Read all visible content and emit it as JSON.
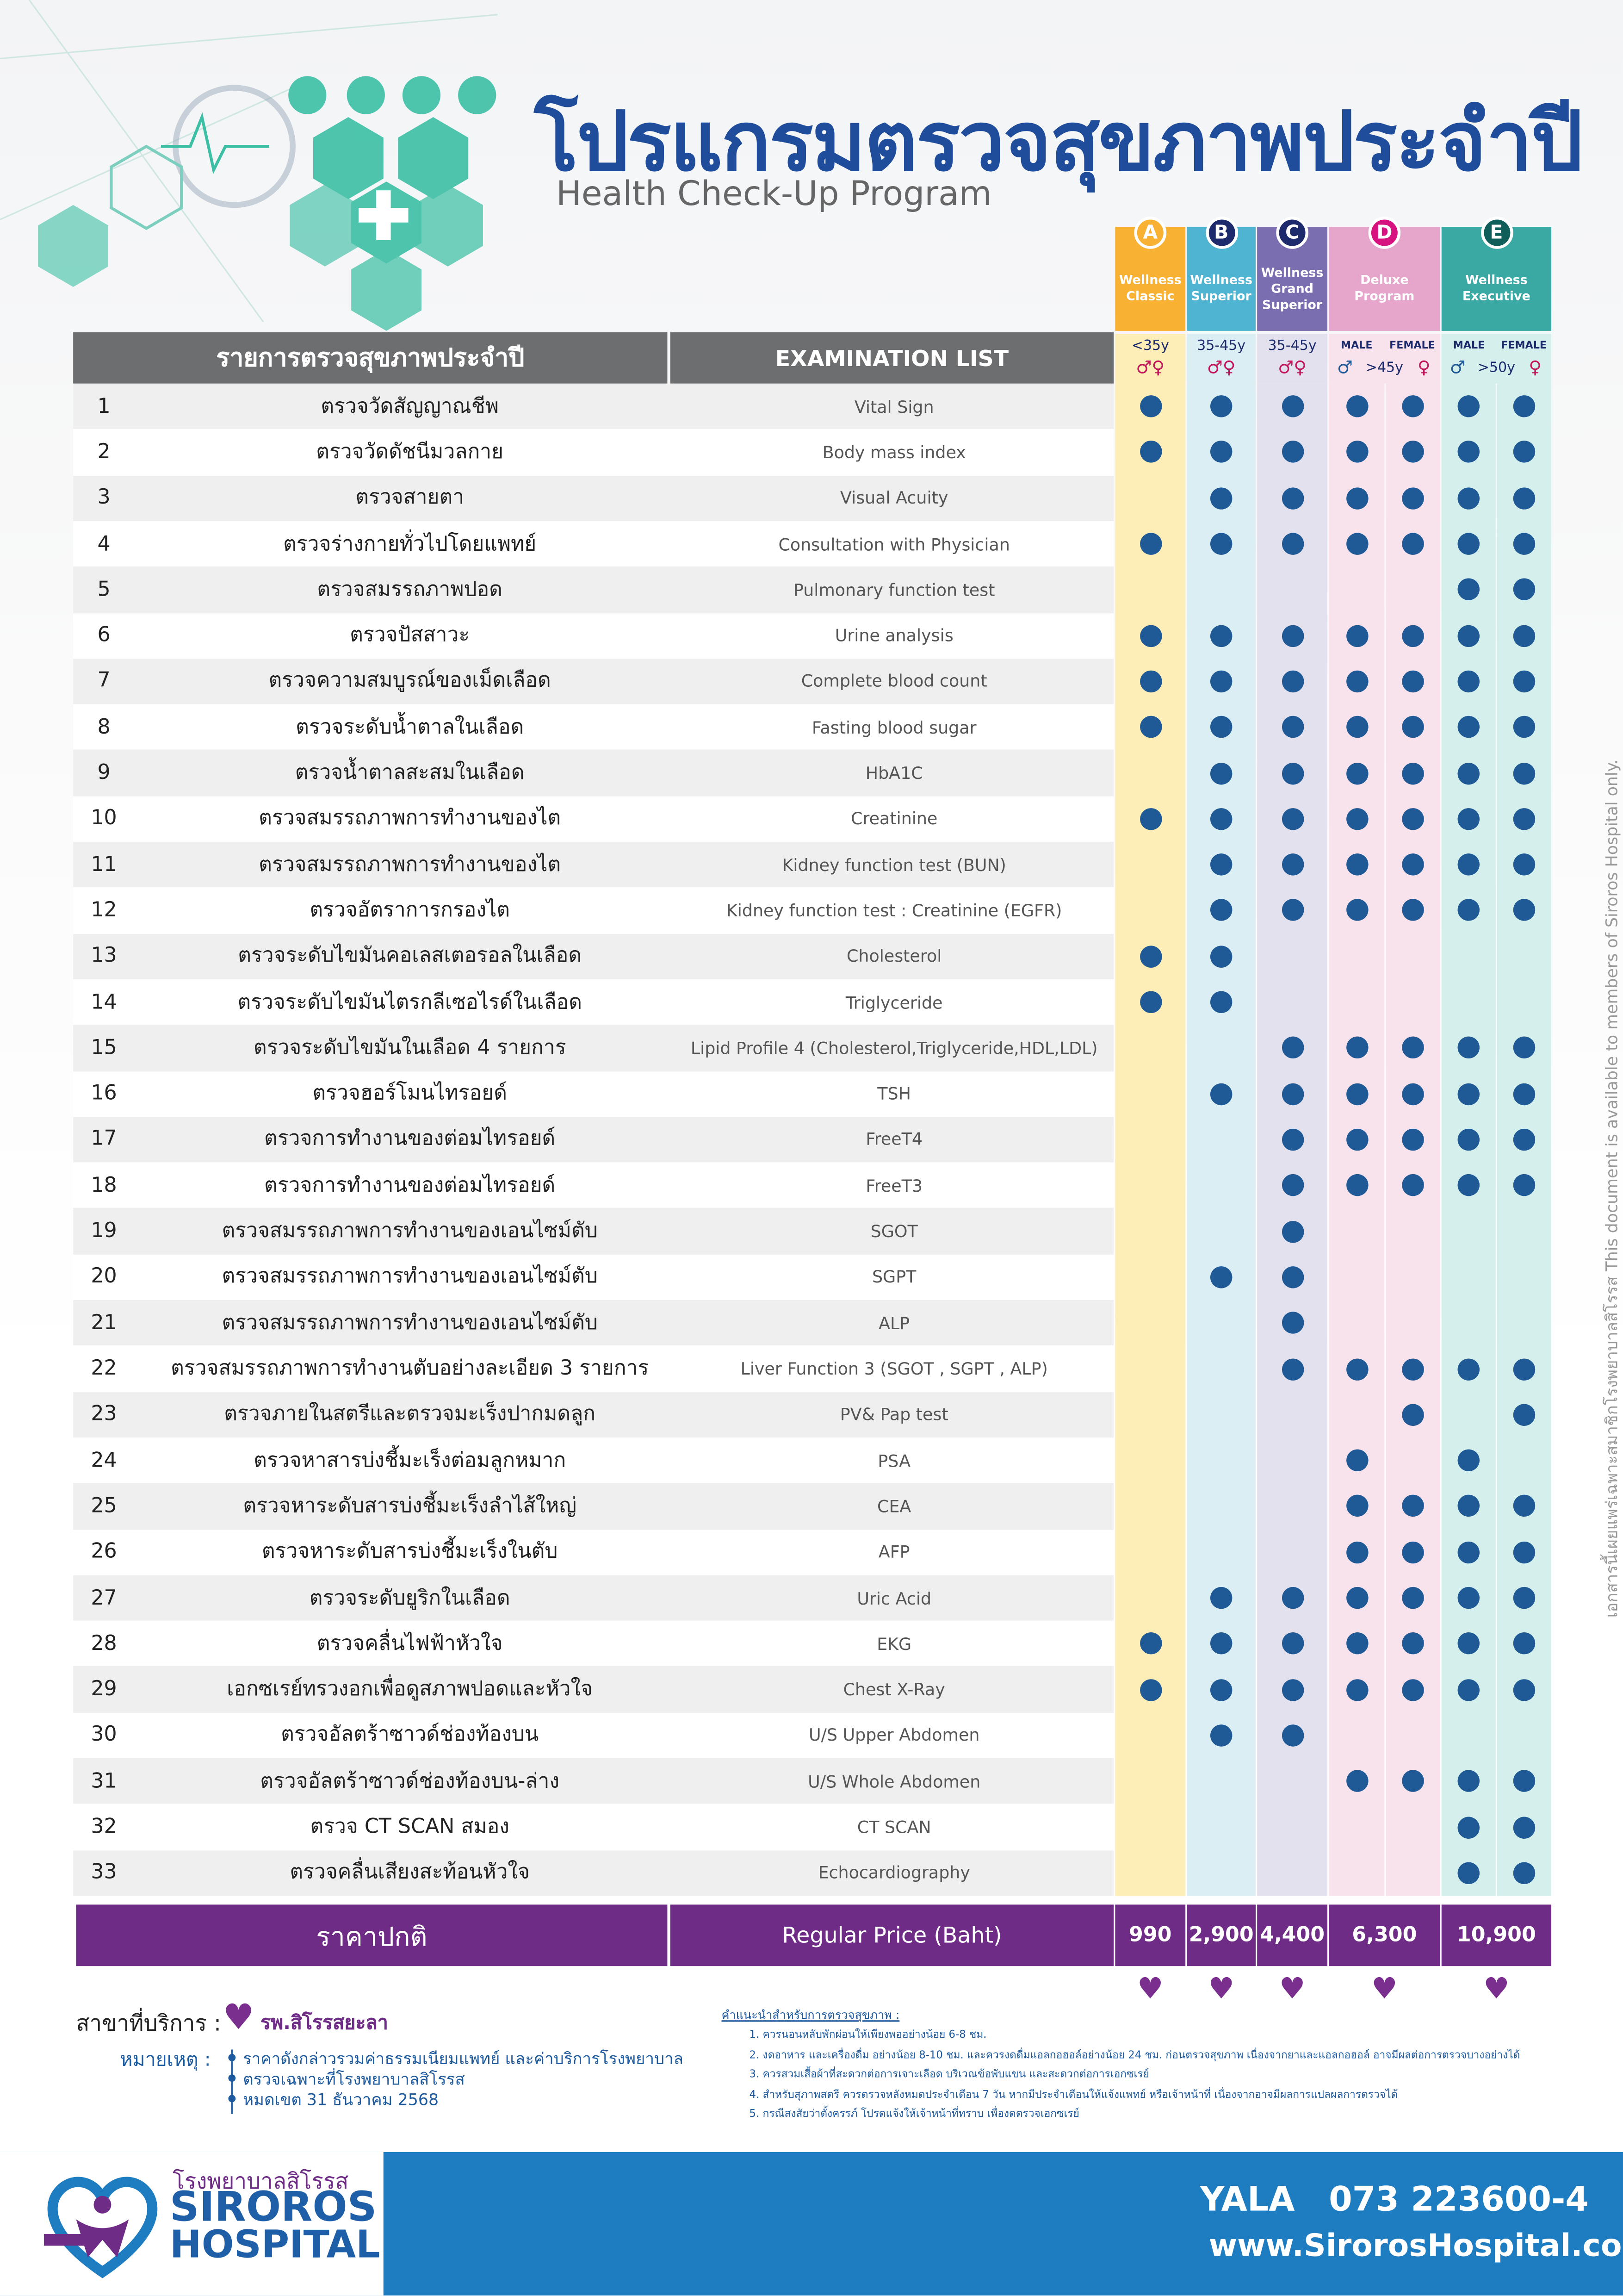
{
  "header": {
    "title_th": "โปรแกรมตรวจสุขภาพประจำปี",
    "title_en": "Health Check-Up Program"
  },
  "packages": [
    {
      "letter": "A",
      "name": "Wellness Classic",
      "age": "<35y",
      "genders": "♂♀"
    },
    {
      "letter": "B",
      "name": "Wellness Superior",
      "age": "35-45y",
      "genders": "♂♀"
    },
    {
      "letter": "C",
      "name": "Wellness Grand Superior",
      "age": "35-45y",
      "genders": "♂♀"
    },
    {
      "letter": "D",
      "name": "Deluxe Program",
      "age": ">45y",
      "male": "MALE",
      "female": "FEMALE",
      "male_sign": "♂",
      "female_sign": "♀"
    },
    {
      "letter": "E",
      "name": "Wellness Executive",
      "age": ">50y",
      "male": "MALE",
      "female": "FEMALE",
      "male_sign": "♂",
      "female_sign": "♀"
    }
  ],
  "table": {
    "header_th": "รายการตรวจสุขภาพประจำปี",
    "header_en": "EXAMINATION LIST",
    "rows": [
      {
        "no": "1",
        "th": "ตรวจวัดสัญญาณชีพ",
        "en": "Vital Sign",
        "checks": [
          true,
          true,
          true,
          true,
          true,
          true,
          true
        ]
      },
      {
        "no": "2",
        "th": "ตรวจวัดดัชนีมวลกาย",
        "en": "Body mass index",
        "checks": [
          true,
          true,
          true,
          true,
          true,
          true,
          true
        ]
      },
      {
        "no": "3",
        "th": "ตรวจสายตา",
        "en": "Visual Acuity",
        "checks": [
          false,
          true,
          true,
          true,
          true,
          true,
          true
        ]
      },
      {
        "no": "4",
        "th": "ตรวจร่างกายทั่วไปโดยแพทย์",
        "en": "Consultation with Physician",
        "checks": [
          true,
          true,
          true,
          true,
          true,
          true,
          true
        ]
      },
      {
        "no": "5",
        "th": "ตรวจสมรรถภาพปอด",
        "en": "Pulmonary function test",
        "checks": [
          false,
          false,
          false,
          false,
          false,
          true,
          true
        ]
      },
      {
        "no": "6",
        "th": "ตรวจปัสสาวะ",
        "en": "Urine analysis",
        "checks": [
          true,
          true,
          true,
          true,
          true,
          true,
          true
        ]
      },
      {
        "no": "7",
        "th": "ตรวจความสมบูรณ์ของเม็ดเลือด",
        "en": "Complete blood count",
        "checks": [
          true,
          true,
          true,
          true,
          true,
          true,
          true
        ]
      },
      {
        "no": "8",
        "th": "ตรวจระดับน้ำตาลในเลือด",
        "en": "Fasting blood sugar",
        "checks": [
          true,
          true,
          true,
          true,
          true,
          true,
          true
        ]
      },
      {
        "no": "9",
        "th": "ตรวจน้ำตาลสะสมในเลือด",
        "en": "HbA1C",
        "checks": [
          false,
          true,
          true,
          true,
          true,
          true,
          true
        ]
      },
      {
        "no": "10",
        "th": "ตรวจสมรรถภาพการทำงานของไต",
        "en": "Creatinine",
        "checks": [
          true,
          true,
          true,
          true,
          true,
          true,
          true
        ]
      },
      {
        "no": "11",
        "th": "ตรวจสมรรถภาพการทำงานของไต",
        "en": "Kidney function test (BUN)",
        "checks": [
          false,
          true,
          true,
          true,
          true,
          true,
          true
        ]
      },
      {
        "no": "12",
        "th": "ตรวจอัตราการกรองไต",
        "en": "Kidney function test : Creatinine (EGFR)",
        "checks": [
          false,
          true,
          true,
          true,
          true,
          true,
          true
        ]
      },
      {
        "no": "13",
        "th": "ตรวจระดับไขมันคอเลสเตอรอลในเลือด",
        "en": "Cholesterol",
        "checks": [
          true,
          true,
          false,
          false,
          false,
          false,
          false
        ]
      },
      {
        "no": "14",
        "th": "ตรวจระดับไขมันไตรกลีเซอไรด์ในเลือด",
        "en": "Triglyceride",
        "checks": [
          true,
          true,
          false,
          false,
          false,
          false,
          false
        ]
      },
      {
        "no": "15",
        "th": "ตรวจระดับไขมันในเลือด  4 รายการ",
        "en": "Lipid Profile  4 (Cholesterol,Triglyceride,HDL,LDL)",
        "checks": [
          false,
          false,
          true,
          true,
          true,
          true,
          true
        ]
      },
      {
        "no": "16",
        "th": "ตรวจฮอร์โมนไทรอยด์",
        "en": "TSH",
        "checks": [
          false,
          true,
          true,
          true,
          true,
          true,
          true
        ]
      },
      {
        "no": "17",
        "th": "ตรวจการทำงานของต่อมไทรอยด์",
        "en": "FreeT4",
        "checks": [
          false,
          false,
          true,
          true,
          true,
          true,
          true
        ]
      },
      {
        "no": "18",
        "th": "ตรวจการทำงานของต่อมไทรอยด์",
        "en": "FreeT3",
        "checks": [
          false,
          false,
          true,
          true,
          true,
          true,
          true
        ]
      },
      {
        "no": "19",
        "th": "ตรวจสมรรถภาพการทำงานของเอนไซม์ตับ",
        "en": "SGOT",
        "checks": [
          false,
          false,
          true,
          false,
          false,
          false,
          false
        ]
      },
      {
        "no": "20",
        "th": "ตรวจสมรรถภาพการทำงานของเอนไซม์ตับ",
        "en": "SGPT",
        "checks": [
          false,
          true,
          true,
          false,
          false,
          false,
          false
        ]
      },
      {
        "no": "21",
        "th": "ตรวจสมรรถภาพการทำงานของเอนไซม์ตับ",
        "en": "ALP",
        "checks": [
          false,
          false,
          true,
          false,
          false,
          false,
          false
        ]
      },
      {
        "no": "22",
        "th": "ตรวจสมรรถภาพการทำงานตับอย่างละเอียด 3 รายการ",
        "en": "Liver Function 3 (SGOT , SGPT , ALP)",
        "checks": [
          false,
          false,
          true,
          true,
          true,
          true,
          true
        ]
      },
      {
        "no": "23",
        "th": "ตรวจภายในสตรีและตรวจมะเร็งปากมดลูก",
        "en": "PV& Pap test",
        "checks": [
          false,
          false,
          false,
          false,
          true,
          false,
          true
        ]
      },
      {
        "no": "24",
        "th": "ตรวจหาสารบ่งชี้มะเร็งต่อมลูกหมาก",
        "en": "PSA",
        "checks": [
          false,
          false,
          false,
          true,
          false,
          true,
          false
        ]
      },
      {
        "no": "25",
        "th": "ตรวจหาระดับสารบ่งชี้มะเร็งลำไส้ใหญ่",
        "en": "CEA",
        "checks": [
          false,
          false,
          false,
          true,
          true,
          true,
          true
        ]
      },
      {
        "no": "26",
        "th": "ตรวจหาระดับสารบ่งชี้มะเร็งในตับ",
        "en": "AFP",
        "checks": [
          false,
          false,
          false,
          true,
          true,
          true,
          true
        ]
      },
      {
        "no": "27",
        "th": "ตรวจระดับยูริกในเลือด",
        "en": "Uric Acid",
        "checks": [
          false,
          true,
          true,
          true,
          true,
          true,
          true
        ]
      },
      {
        "no": "28",
        "th": "ตรวจคลื่นไฟฟ้าหัวใจ",
        "en": "EKG",
        "checks": [
          true,
          true,
          true,
          true,
          true,
          true,
          true
        ]
      },
      {
        "no": "29",
        "th": "เอกซเรย์ทรวงอกเพื่อดูสภาพปอดและหัวใจ",
        "en": "Chest  X-Ray",
        "checks": [
          true,
          true,
          true,
          true,
          true,
          true,
          true
        ]
      },
      {
        "no": "30",
        "th": "ตรวจอัลตร้าซาวด์ช่องท้องบน",
        "en": "U/S Upper Abdomen",
        "checks": [
          false,
          true,
          true,
          false,
          false,
          false,
          false
        ]
      },
      {
        "no": "31",
        "th": "ตรวจอัลตร้าซาวด์ช่องท้องบน-ล่าง",
        "en": "U/S Whole Abdomen",
        "checks": [
          false,
          false,
          false,
          true,
          true,
          true,
          true
        ]
      },
      {
        "no": "32",
        "th": "ตรวจ CT SCAN สมอง",
        "en": "CT SCAN",
        "checks": [
          false,
          false,
          false,
          false,
          false,
          true,
          true
        ]
      },
      {
        "no": "33",
        "th": "ตรวจคลื่นเสียงสะท้อนหัวใจ",
        "en": "Echocardiography",
        "checks": [
          false,
          false,
          false,
          false,
          false,
          true,
          true
        ]
      }
    ],
    "price_th": "ราคาปกติ",
    "price_en": "Regular Price (Baht)",
    "prices": [
      "990",
      "2,900",
      "4,400",
      "6,300",
      "10,900"
    ]
  },
  "branch": {
    "label": "สาขาที่บริการ :",
    "name": "รพ.สิโรรสยะลา"
  },
  "remarks": {
    "label": "หมายเหตุ :",
    "items": [
      "ราคาดังกล่าวรวมค่าธรรมเนียมแพทย์ และค่าบริการโรงพยาบาล",
      "ตรวจเฉพาะที่โรงพยาบาลสิโรรส",
      "หมดเขต 31 ธันวาคม 2568"
    ]
  },
  "advice": {
    "title": "คำแนะนำสำหรับการตรวจสุขภาพ :",
    "items": [
      "1. ควรนอนหลับพักผ่อนให้เพียงพออย่างน้อย 6-8 ชม.",
      "2. งดอาหาร และเครื่องดื่ม อย่างน้อย 8-10 ชม. และควรงดดื่มแอลกอฮอล์อย่างน้อย 24 ชม. ก่อนตรวจสุขภาพ  เนื่องจากยาและแอลกอฮอล์ อาจมีผลต่อการตรวจบางอย่างได้",
      "3. ควรสวมเสื้อผ้าที่สะดวกต่อการเจาะเลือด บริเวณข้อพับแขน และสะดวกต่อการเอกซเรย์",
      "4. สำหรับสุภาพสตรี ควรตรวจหลังหมดประจำเดือน 7 วัน หากมีประจำเดือนให้แจ้งแพทย์ หรือเจ้าหน้าที่  เนื่องจากอาจมีผลการแปลผลการตรวจได้",
      "5. กรณีสงสัยว่าตั้งครรภ์ โปรดแจ้งให้เจ้าหน้าที่ทราบ เพื่องดตรวจเอกซเรย์"
    ]
  },
  "side_note": "เอกสารนี้เผยแพร่เฉพาะสมาชิกโรงพยาบาลสิโรรส This document is available to members of Siroros Hospital only.",
  "footer": {
    "logo_th": "โรงพยาบาลสิโรรส",
    "logo_en1": "SIROROS",
    "logo_en2": "HOSPITAL",
    "city": "YALA",
    "phone": "073 223600-4",
    "web": "www.SirorosHospital.com"
  }
}
